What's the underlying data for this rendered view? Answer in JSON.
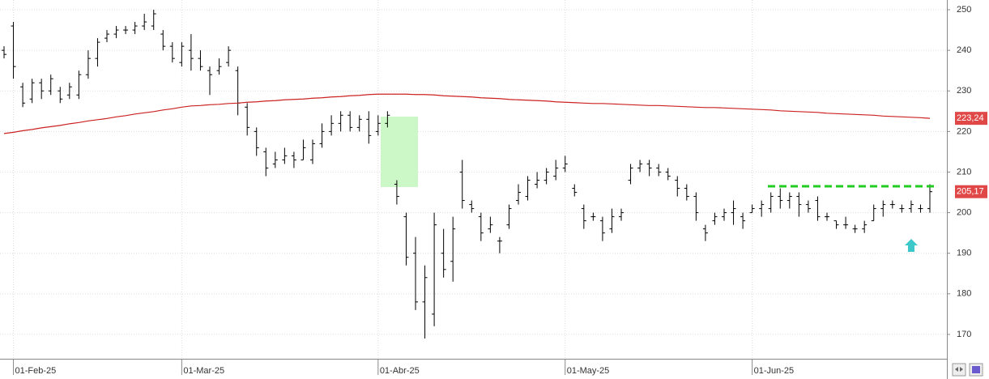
{
  "chart_data": {
    "type": "ohlc",
    "categories": [
      null,
      "01-Feb-25",
      null,
      null,
      null,
      null,
      null,
      null,
      null,
      null,
      null,
      null,
      null,
      null,
      null,
      null,
      null,
      null,
      null,
      "01-Mar-25",
      null,
      null,
      null,
      null,
      null,
      null,
      null,
      null,
      null,
      null,
      null,
      null,
      null,
      null,
      null,
      null,
      null,
      null,
      null,
      null,
      "01-Abr-25",
      null,
      null,
      null,
      null,
      null,
      null,
      null,
      null,
      null,
      null,
      null,
      null,
      null,
      null,
      null,
      null,
      null,
      null,
      null,
      "01-May-25",
      null,
      null,
      null,
      null,
      null,
      null,
      null,
      null,
      null,
      null,
      null,
      null,
      null,
      null,
      null,
      null,
      null,
      null,
      null,
      "01-Jun-25",
      null,
      null,
      null,
      null,
      null,
      null,
      null,
      null,
      null,
      null,
      null,
      null,
      null,
      null,
      null,
      null,
      null,
      null,
      null
    ],
    "open": [
      240,
      246,
      231,
      228,
      232,
      230,
      230,
      229,
      229,
      234,
      238,
      243,
      244,
      245,
      245,
      246,
      246,
      244,
      241,
      237,
      240,
      238,
      235,
      235,
      237,
      235,
      226,
      220,
      215,
      212,
      213,
      214,
      213,
      213,
      217,
      220,
      222,
      224,
      221,
      223,
      220,
      222,
      207,
      199,
      190,
      178,
      175,
      190,
      188,
      210,
      202,
      199,
      196,
      193,
      197,
      203,
      204,
      207,
      208,
      209,
      211,
      206,
      201,
      199,
      198,
      196,
      199,
      208,
      211,
      212,
      211,
      210,
      208,
      206,
      204,
      196,
      198,
      199,
      200,
      199,
      200,
      201,
      201,
      204,
      203,
      204,
      202,
      203,
      199,
      198,
      197,
      196,
      196,
      198,
      201,
      202,
      201,
      201,
      201,
      201
    ],
    "high": [
      241,
      247,
      232,
      233,
      233,
      234,
      231,
      232,
      235,
      240,
      243,
      245,
      246,
      246,
      247,
      249,
      250,
      245,
      242,
      242,
      244,
      240,
      236,
      238,
      241,
      236,
      227,
      221,
      216,
      215,
      216,
      215,
      218,
      218,
      222,
      224,
      225,
      225,
      224,
      225,
      224,
      225,
      208,
      200,
      194,
      187,
      200,
      196,
      199,
      213,
      203,
      200,
      199,
      194,
      202,
      207,
      209,
      210,
      211,
      213,
      214,
      207,
      202,
      200,
      199,
      201,
      201,
      212,
      213,
      213,
      212,
      211,
      209,
      207,
      205,
      197,
      200,
      201,
      203,
      200,
      202,
      203,
      205,
      206,
      205,
      205,
      203,
      204,
      200,
      198,
      199,
      197,
      198,
      202,
      203,
      203,
      202,
      203,
      202,
      207
    ],
    "low": [
      238,
      233,
      226,
      227,
      228,
      229,
      227,
      228,
      228,
      233,
      236,
      242,
      243,
      244,
      244,
      245,
      245,
      240,
      237,
      236,
      235,
      235,
      229,
      234,
      236,
      224,
      219,
      214,
      209,
      211,
      212,
      211,
      213,
      212,
      216,
      219,
      220,
      220,
      220,
      217,
      219,
      221,
      202,
      187,
      176,
      169,
      172,
      184,
      183,
      201,
      200,
      193,
      195,
      190,
      196,
      202,
      203,
      206,
      207,
      208,
      210,
      204,
      196,
      198,
      193,
      195,
      198,
      207,
      210,
      209,
      209,
      208,
      204,
      203,
      198,
      193,
      197,
      198,
      197,
      196,
      200,
      199,
      200,
      201,
      201,
      199,
      200,
      198,
      198,
      196,
      196,
      195,
      195,
      198,
      199,
      201,
      200,
      200,
      200,
      200
    ],
    "close": [
      239,
      236,
      227,
      232,
      230,
      233,
      228,
      231,
      234,
      238,
      242,
      244,
      245,
      245,
      246,
      247,
      249,
      241,
      238,
      241,
      238,
      236,
      234,
      236,
      240,
      227,
      221,
      216,
      211,
      213,
      214,
      213,
      216,
      217,
      220,
      222,
      224,
      221,
      223,
      219,
      222,
      224,
      204,
      189,
      178,
      184,
      197,
      186,
      196,
      203,
      201,
      195,
      197,
      193,
      201,
      205,
      208,
      208,
      210,
      211,
      212,
      205,
      198,
      199,
      195,
      199,
      200,
      211,
      212,
      211,
      210,
      209,
      206,
      204,
      200,
      195,
      199,
      200,
      201,
      198,
      201,
      202,
      204,
      203,
      204,
      202,
      201,
      199,
      199,
      197,
      197,
      196,
      197,
      201,
      202,
      202,
      201,
      202,
      201,
      205.17
    ],
    "bar_color": "#000000",
    "ma": {
      "color": "#cc2222",
      "values": [
        219.5,
        219.8,
        220.2,
        220.5,
        220.9,
        221.2,
        221.5,
        221.9,
        222.2,
        222.6,
        222.9,
        223.2,
        223.6,
        223.9,
        224.3,
        224.6,
        224.9,
        225.3,
        225.6,
        226.0,
        226.3,
        226.4,
        226.6,
        226.7,
        226.9,
        227.0,
        227.2,
        227.3,
        227.5,
        227.6,
        227.8,
        227.9,
        228.0,
        228.2,
        228.3,
        228.5,
        228.6,
        228.8,
        228.9,
        229.1,
        229.2,
        229.2,
        229.2,
        229.2,
        229.1,
        229.1,
        229.0,
        228.8,
        228.7,
        228.6,
        228.5,
        228.3,
        228.2,
        228.1,
        227.9,
        227.8,
        227.7,
        227.6,
        227.5,
        227.3,
        227.2,
        227.1,
        227.0,
        226.9,
        226.9,
        226.8,
        226.7,
        226.6,
        226.5,
        226.4,
        226.4,
        226.3,
        226.2,
        226.1,
        226.0,
        225.9,
        225.9,
        225.8,
        225.7,
        225.6,
        225.5,
        225.4,
        225.3,
        225.1,
        225.0,
        224.9,
        224.8,
        224.7,
        224.5,
        224.4,
        224.3,
        224.2,
        224.1,
        224.0,
        223.8,
        223.7,
        223.6,
        223.5,
        223.4,
        223.24
      ]
    },
    "ylim": [
      164,
      252.4
    ],
    "yticks": [
      170,
      180,
      190,
      200,
      210,
      220,
      230,
      240,
      250
    ],
    "grid": true,
    "price_labels": [
      {
        "value": 223.24,
        "label": "223,24"
      },
      {
        "value": 205.17,
        "label": "205,17"
      }
    ],
    "price_label_color": "#e04848"
  }
}
